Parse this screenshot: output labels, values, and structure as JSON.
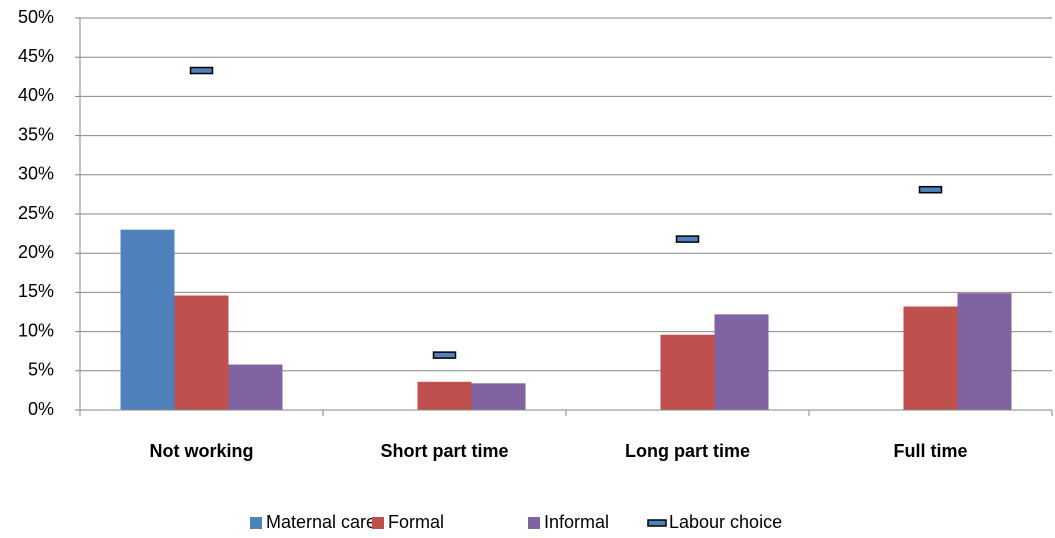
{
  "chart_data": {
    "type": "bar",
    "categories": [
      "Not working",
      "Short part time",
      "Long part time",
      "Full time"
    ],
    "series": [
      {
        "name": "Maternal care",
        "color": "#4f81bd",
        "values": [
          23,
          null,
          null,
          null
        ]
      },
      {
        "name": "Formal",
        "color": "#c0504d",
        "values": [
          14.6,
          3.6,
          9.6,
          13.2
        ]
      },
      {
        "name": "Informal",
        "color": "#8064a2",
        "values": [
          5.8,
          3.4,
          12.2,
          14.9
        ]
      },
      {
        "name": "Labour choice",
        "color": "#4f81bd",
        "marker": "dash",
        "values": [
          43.3,
          7.0,
          21.8,
          28.1
        ]
      }
    ],
    "ylim": [
      0,
      50
    ],
    "yticks": [
      {
        "value": 0,
        "label": "0%"
      },
      {
        "value": 5,
        "label": "5%"
      },
      {
        "value": 10,
        "label": "10%"
      },
      {
        "value": 15,
        "label": "15%"
      },
      {
        "value": 20,
        "label": "20%"
      },
      {
        "value": 25,
        "label": "25%"
      },
      {
        "value": 30,
        "label": "30%"
      },
      {
        "value": 35,
        "label": "35%"
      },
      {
        "value": 40,
        "label": "40%"
      },
      {
        "value": 45,
        "label": "45%"
      },
      {
        "value": 50,
        "label": "50%"
      }
    ],
    "grid": true,
    "legend": "bottom"
  }
}
